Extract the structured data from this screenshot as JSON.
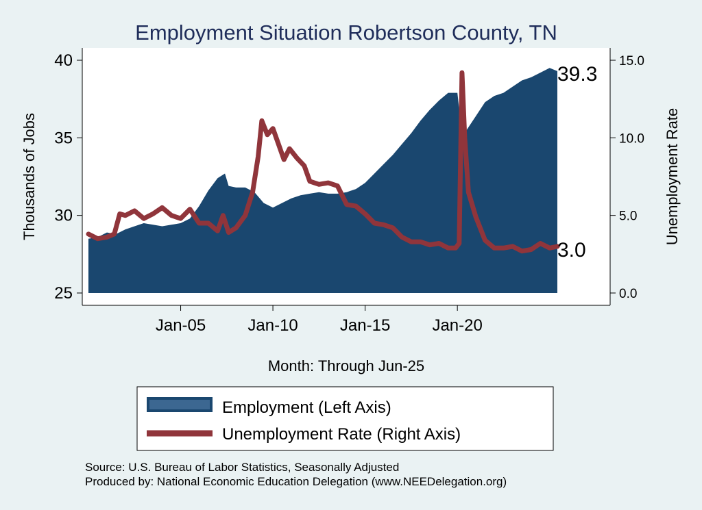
{
  "chart_data": {
    "type": "area",
    "title": "Employment Situation Robertson  County, TN",
    "xlabel": "Month: Through Jun-25",
    "ylabel_left": "Thousands of Jobs",
    "ylabel_right": "Unemployment Rate",
    "x_ticks": [
      "Jan-05",
      "Jan-10",
      "Jan-15",
      "Jan-20"
    ],
    "y_left_ticks": [
      "25",
      "30",
      "35",
      "40"
    ],
    "y_right_ticks": [
      "0.0",
      "5.0",
      "10.0",
      "15.0"
    ],
    "ylim_left": [
      25,
      40
    ],
    "ylim_right": [
      0,
      15
    ],
    "x_start_year": 2000.0,
    "x_end_year": 2025.42,
    "last_employment_label": "39.3",
    "last_unemployment_label": "3.0",
    "series": [
      {
        "name": "Employment (Left Axis)",
        "axis": "left",
        "color": "#1a476f",
        "points": [
          [
            2000.0,
            28.5
          ],
          [
            2000.5,
            28.6
          ],
          [
            2001.0,
            28.9
          ],
          [
            2001.5,
            28.8
          ],
          [
            2002.0,
            29.1
          ],
          [
            2002.5,
            29.3
          ],
          [
            2003.0,
            29.5
          ],
          [
            2003.5,
            29.4
          ],
          [
            2004.0,
            29.3
          ],
          [
            2004.5,
            29.4
          ],
          [
            2005.0,
            29.5
          ],
          [
            2005.5,
            29.8
          ],
          [
            2006.0,
            30.6
          ],
          [
            2006.5,
            31.6
          ],
          [
            2007.0,
            32.4
          ],
          [
            2007.4,
            32.7
          ],
          [
            2007.6,
            31.9
          ],
          [
            2008.0,
            31.8
          ],
          [
            2008.5,
            31.8
          ],
          [
            2009.0,
            31.5
          ],
          [
            2009.5,
            30.8
          ],
          [
            2010.0,
            30.5
          ],
          [
            2010.5,
            30.8
          ],
          [
            2011.0,
            31.1
          ],
          [
            2011.5,
            31.3
          ],
          [
            2012.0,
            31.4
          ],
          [
            2012.5,
            31.5
          ],
          [
            2013.0,
            31.4
          ],
          [
            2013.5,
            31.4
          ],
          [
            2014.0,
            31.5
          ],
          [
            2014.5,
            31.7
          ],
          [
            2015.0,
            32.1
          ],
          [
            2015.5,
            32.7
          ],
          [
            2016.0,
            33.3
          ],
          [
            2016.5,
            33.9
          ],
          [
            2017.0,
            34.6
          ],
          [
            2017.5,
            35.3
          ],
          [
            2018.0,
            36.1
          ],
          [
            2018.5,
            36.8
          ],
          [
            2019.0,
            37.4
          ],
          [
            2019.5,
            37.9
          ],
          [
            2020.0,
            37.9
          ],
          [
            2020.25,
            35.2
          ],
          [
            2020.5,
            35.5
          ],
          [
            2021.0,
            36.4
          ],
          [
            2021.5,
            37.3
          ],
          [
            2022.0,
            37.7
          ],
          [
            2022.5,
            37.9
          ],
          [
            2023.0,
            38.3
          ],
          [
            2023.5,
            38.7
          ],
          [
            2024.0,
            38.9
          ],
          [
            2024.5,
            39.2
          ],
          [
            2025.0,
            39.5
          ],
          [
            2025.42,
            39.3
          ]
        ]
      },
      {
        "name": "Unemployment Rate (Right Axis)",
        "axis": "right",
        "color": "#90353b",
        "points": [
          [
            2000.0,
            3.8
          ],
          [
            2000.5,
            3.5
          ],
          [
            2001.0,
            3.6
          ],
          [
            2001.4,
            3.8
          ],
          [
            2001.7,
            5.1
          ],
          [
            2002.0,
            5.0
          ],
          [
            2002.5,
            5.3
          ],
          [
            2003.0,
            4.8
          ],
          [
            2003.5,
            5.1
          ],
          [
            2004.0,
            5.5
          ],
          [
            2004.5,
            5.0
          ],
          [
            2005.0,
            4.8
          ],
          [
            2005.5,
            5.4
          ],
          [
            2006.0,
            4.5
          ],
          [
            2006.5,
            4.5
          ],
          [
            2007.0,
            4.0
          ],
          [
            2007.3,
            5.0
          ],
          [
            2007.6,
            3.9
          ],
          [
            2008.0,
            4.2
          ],
          [
            2008.5,
            5.0
          ],
          [
            2008.9,
            6.5
          ],
          [
            2009.2,
            8.8
          ],
          [
            2009.4,
            11.1
          ],
          [
            2009.7,
            10.2
          ],
          [
            2010.0,
            10.6
          ],
          [
            2010.3,
            9.6
          ],
          [
            2010.6,
            8.6
          ],
          [
            2010.9,
            9.3
          ],
          [
            2011.3,
            8.7
          ],
          [
            2011.7,
            8.2
          ],
          [
            2012.0,
            7.2
          ],
          [
            2012.5,
            7.0
          ],
          [
            2013.0,
            7.1
          ],
          [
            2013.5,
            6.9
          ],
          [
            2014.0,
            5.7
          ],
          [
            2014.5,
            5.6
          ],
          [
            2015.0,
            5.1
          ],
          [
            2015.5,
            4.5
          ],
          [
            2016.0,
            4.4
          ],
          [
            2016.5,
            4.2
          ],
          [
            2017.0,
            3.6
          ],
          [
            2017.5,
            3.3
          ],
          [
            2018.0,
            3.3
          ],
          [
            2018.5,
            3.1
          ],
          [
            2019.0,
            3.2
          ],
          [
            2019.5,
            2.9
          ],
          [
            2019.9,
            2.9
          ],
          [
            2020.1,
            3.2
          ],
          [
            2020.25,
            14.2
          ],
          [
            2020.4,
            10.0
          ],
          [
            2020.6,
            6.5
          ],
          [
            2021.0,
            4.9
          ],
          [
            2021.5,
            3.4
          ],
          [
            2022.0,
            2.9
          ],
          [
            2022.5,
            2.9
          ],
          [
            2023.0,
            3.0
          ],
          [
            2023.5,
            2.7
          ],
          [
            2024.0,
            2.8
          ],
          [
            2024.5,
            3.2
          ],
          [
            2025.0,
            2.9
          ],
          [
            2025.42,
            3.0
          ]
        ]
      }
    ],
    "legend_position": "bottom",
    "grid": false
  },
  "source_line": "Source: U.S. Bureau of Labor Statistics, Seasonally Adjusted",
  "producer_line": "Produced by: National Economic Education Delegation (www.NEEDelegation.org)"
}
